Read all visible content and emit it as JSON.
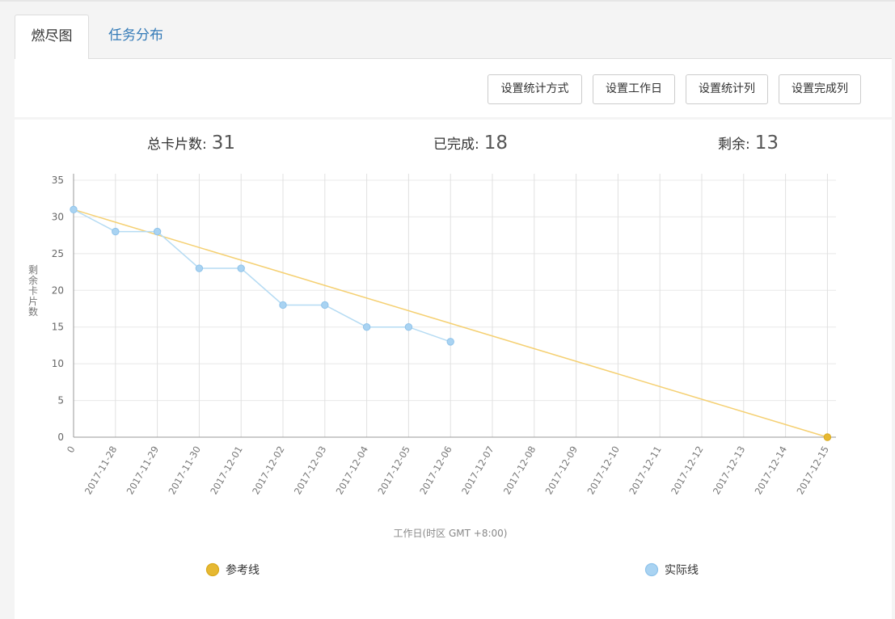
{
  "tabs": [
    {
      "label": "燃尽图",
      "active": true
    },
    {
      "label": "任务分布",
      "active": false
    }
  ],
  "toolbar": {
    "buttons": [
      "设置统计方式",
      "设置工作日",
      "设置统计列",
      "设置完成列"
    ]
  },
  "stats": {
    "total_label": "总卡片数:",
    "total_value": "31",
    "done_label": "已完成:",
    "done_value": "18",
    "remaining_label": "剩余:",
    "remaining_value": "13"
  },
  "colors": {
    "reference": "#f5d072",
    "actual": "#b5dbf3",
    "actual_marker": "#a9d3f2",
    "reference_marker": "#e6b832",
    "tab_link": "#337ab7"
  },
  "chart_data": {
    "type": "line",
    "xlabel": "工作日(时区 GMT +8:00)",
    "ylabel": "剩余卡片数",
    "ylim": [
      0,
      35
    ],
    "yticks": [
      0,
      5,
      10,
      15,
      20,
      25,
      30,
      35
    ],
    "grid": true,
    "legend_position": "bottom",
    "categories": [
      "0",
      "2017-11-28",
      "2017-11-29",
      "2017-11-30",
      "2017-12-01",
      "2017-12-02",
      "2017-12-03",
      "2017-12-04",
      "2017-12-05",
      "2017-12-06",
      "2017-12-07",
      "2017-12-08",
      "2017-12-09",
      "2017-12-10",
      "2017-12-11",
      "2017-12-12",
      "2017-12-13",
      "2017-12-14",
      "2017-12-15"
    ],
    "series": [
      {
        "name": "参考线",
        "values": [
          31,
          null,
          null,
          null,
          null,
          null,
          null,
          null,
          null,
          null,
          null,
          null,
          null,
          null,
          null,
          null,
          null,
          null,
          0
        ]
      },
      {
        "name": "实际线",
        "values": [
          31,
          28,
          28,
          23,
          23,
          18,
          18,
          15,
          15,
          13,
          null,
          null,
          null,
          null,
          null,
          null,
          null,
          null,
          null
        ]
      }
    ]
  }
}
